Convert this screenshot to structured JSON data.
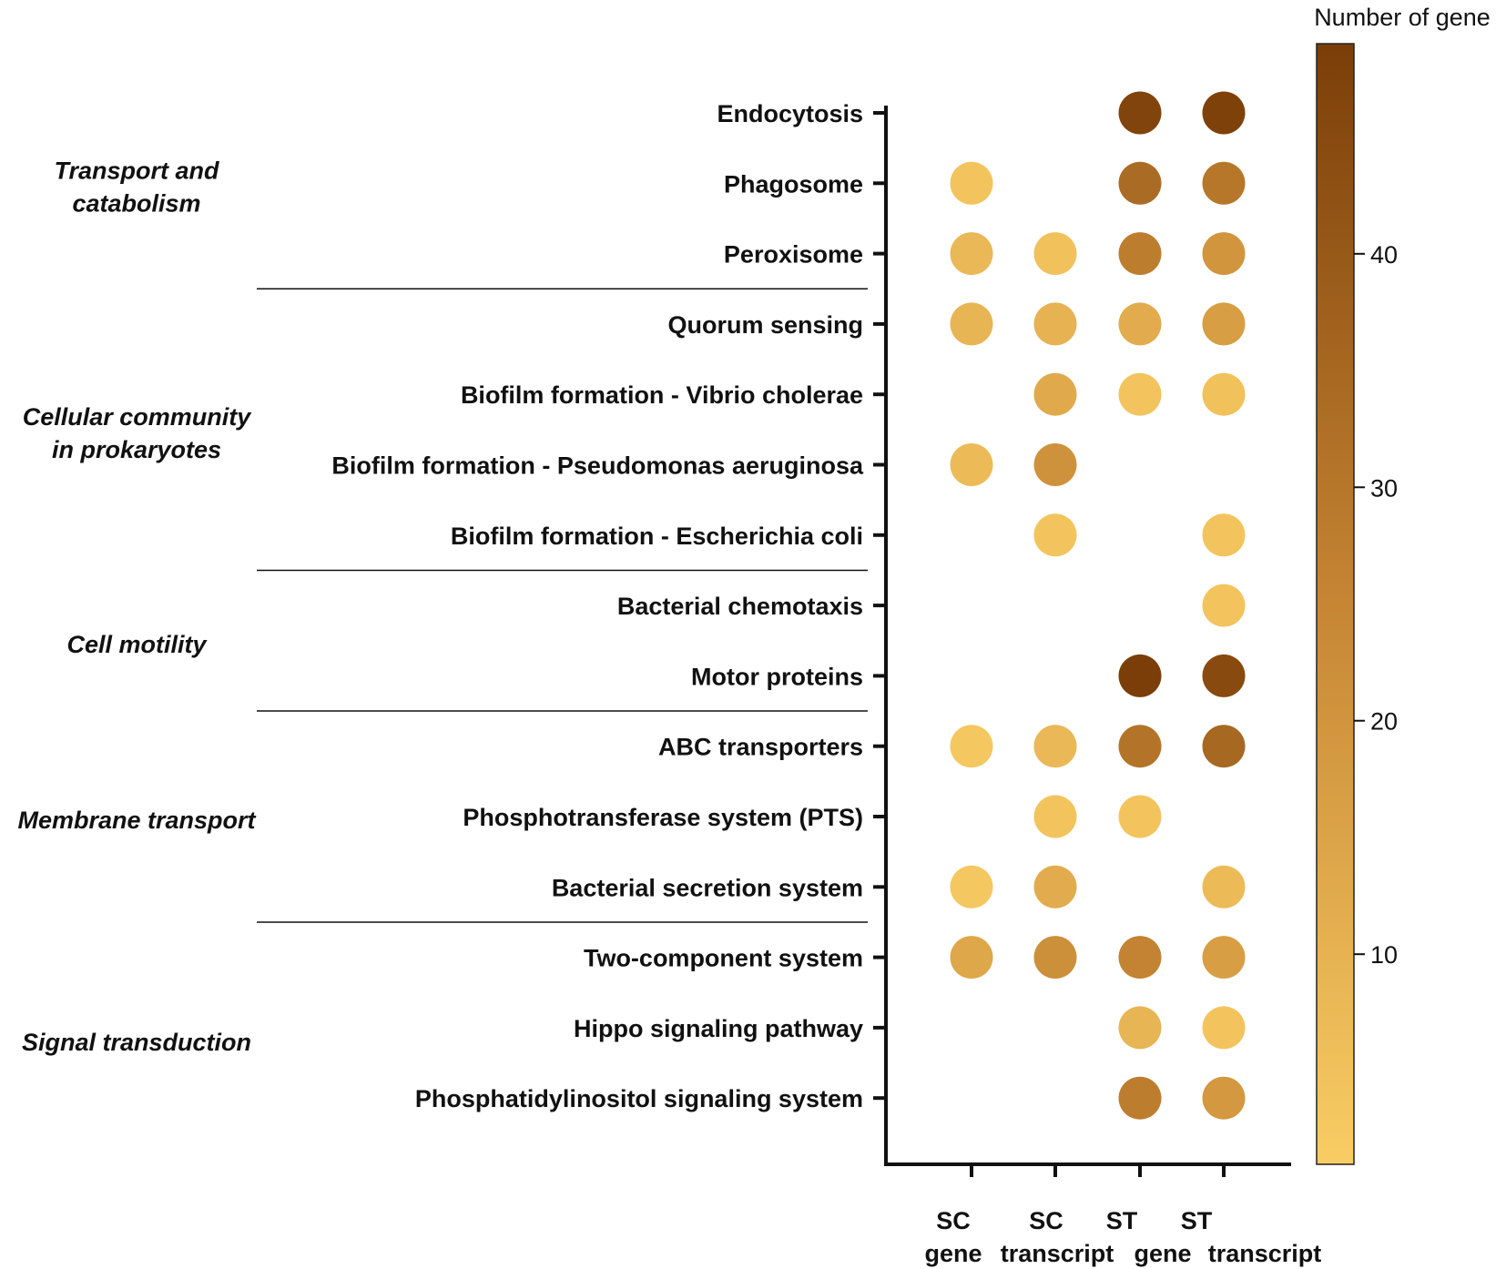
{
  "chart_data": {
    "type": "dot-heatmap",
    "legend_title": "Number of gene",
    "colorbar": {
      "min": 1,
      "max": 49,
      "ticks": [
        10,
        20,
        30,
        40
      ],
      "low_color": "#f9cd64",
      "high_color": "#7b3e08"
    },
    "columns": [
      {
        "line1": "SC",
        "line2": "gene"
      },
      {
        "line1": "SC",
        "line2": "transcript"
      },
      {
        "line1": "ST",
        "line2": "gene"
      },
      {
        "line1": "ST",
        "line2": "transcript"
      }
    ],
    "rows": [
      {
        "label": "Endocytosis",
        "values": [
          null,
          null,
          47,
          48
        ]
      },
      {
        "label": "Phagosome",
        "values": [
          4,
          null,
          34,
          30
        ]
      },
      {
        "label": "Peroxisome",
        "values": [
          8,
          5,
          28,
          20
        ]
      },
      {
        "label": "Quorum sensing",
        "values": [
          9,
          10,
          12,
          17
        ]
      },
      {
        "label": "Biofilm formation - Vibrio cholerae",
        "values": [
          null,
          13,
          4,
          5
        ]
      },
      {
        "label": "Biofilm formation - Pseudomonas aeruginosa",
        "values": [
          7,
          21,
          null,
          null
        ]
      },
      {
        "label": "Biofilm formation - Escherichia coli",
        "values": [
          null,
          4,
          null,
          4
        ]
      },
      {
        "label": "Bacterial chemotaxis",
        "values": [
          null,
          null,
          null,
          4
        ]
      },
      {
        "label": "Motor proteins",
        "values": [
          null,
          null,
          49,
          45
        ]
      },
      {
        "label": "ABC transporters",
        "values": [
          3,
          8,
          31,
          35
        ]
      },
      {
        "label": "Phosphotransferase system (PTS)",
        "values": [
          null,
          4,
          4,
          null
        ]
      },
      {
        "label": "Bacterial secretion system",
        "values": [
          3,
          12,
          null,
          7
        ]
      },
      {
        "label": "Two-component system",
        "values": [
          14,
          22,
          26,
          17
        ]
      },
      {
        "label": "Hippo signaling pathway",
        "values": [
          null,
          null,
          9,
          4
        ]
      },
      {
        "label": "Phosphatidylinositol signaling system",
        "values": [
          null,
          null,
          28,
          19
        ]
      }
    ],
    "categories": [
      {
        "line1": "Transport and",
        "line2": "catabolism",
        "rows": [
          0,
          2
        ]
      },
      {
        "line1": "Cellular community",
        "line2": "in prokaryotes",
        "rows": [
          3,
          6
        ]
      },
      {
        "line1": "Cell motility",
        "line2": "",
        "rows": [
          7,
          8
        ]
      },
      {
        "line1": "Membrane transport",
        "line2": "",
        "rows": [
          9,
          11
        ]
      },
      {
        "line1": "Signal transduction",
        "line2": "",
        "rows": [
          12,
          14
        ]
      }
    ]
  }
}
